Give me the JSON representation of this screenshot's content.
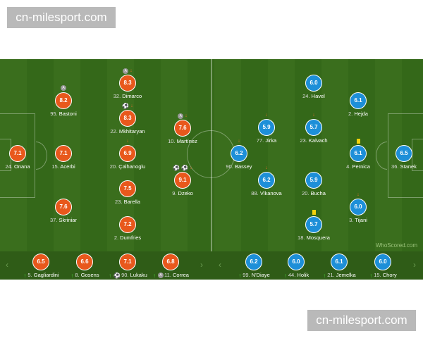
{
  "watermark": "cn-milesport.com",
  "brand": "WhoScored.com",
  "colors": {
    "home": "#e8581c",
    "away": "#1d8fd8"
  },
  "home": [
    {
      "num": "24.",
      "name": "Onana",
      "rating": "7.1",
      "events": []
    },
    {
      "num": "95.",
      "name": "Bastoni",
      "rating": "8.2",
      "events": [
        "assist"
      ]
    },
    {
      "num": "15.",
      "name": "Acerbi",
      "rating": "7.1",
      "events": []
    },
    {
      "num": "37.",
      "name": "Skriniar",
      "rating": "7.6",
      "events": []
    },
    {
      "num": "32.",
      "name": "Dimarco",
      "rating": "8.3",
      "events": [
        "assist",
        "sub-off"
      ]
    },
    {
      "num": "22.",
      "name": "Mkhitaryan",
      "rating": "8.3",
      "events": [
        "goal",
        "sub-off"
      ]
    },
    {
      "num": "20.",
      "name": "Çalhanoglu",
      "rating": "6.9",
      "events": [
        "sub-off"
      ]
    },
    {
      "num": "23.",
      "name": "Barella",
      "rating": "7.5",
      "events": []
    },
    {
      "num": "2.",
      "name": "Dumfries",
      "rating": "7.2",
      "events": []
    },
    {
      "num": "10.",
      "name": "Martínez",
      "rating": "7.6",
      "events": [
        "assist",
        "sub-off"
      ]
    },
    {
      "num": "9.",
      "name": "Dzeko",
      "rating": "9.1",
      "events": [
        "goal",
        "goal",
        "sub-off"
      ]
    }
  ],
  "away": [
    {
      "num": "24.",
      "name": "Havel",
      "rating": "6.0",
      "events": []
    },
    {
      "num": "2.",
      "name": "Hejda",
      "rating": "6.1",
      "events": []
    },
    {
      "num": "77.",
      "name": "Jirka",
      "rating": "5.9",
      "events": [
        "sub-off"
      ]
    },
    {
      "num": "23.",
      "name": "Kalvach",
      "rating": "5.7",
      "events": [
        "sub-off"
      ]
    },
    {
      "num": "90.",
      "name": "Bassey",
      "rating": "6.2",
      "events": [
        "sub-off"
      ]
    },
    {
      "num": "4.",
      "name": "Pernica",
      "rating": "6.1",
      "events": [
        "yellow-card"
      ]
    },
    {
      "num": "36.",
      "name": "Stanek",
      "rating": "6.5",
      "events": []
    },
    {
      "num": "88.",
      "name": "Vlkanova",
      "rating": "6.2",
      "events": [
        "sub-off"
      ]
    },
    {
      "num": "20.",
      "name": "Bucha",
      "rating": "5.9",
      "events": []
    },
    {
      "num": "3.",
      "name": "Tijani",
      "rating": "6.0",
      "events": [
        "sub-off"
      ]
    },
    {
      "num": "18.",
      "name": "Mosquera",
      "rating": "5.7",
      "events": [
        "yellow-card"
      ]
    }
  ],
  "home_subs": [
    {
      "num": "5.",
      "name": "Gagliardini",
      "rating": "6.5",
      "events": [
        "sub-on"
      ]
    },
    {
      "num": "8.",
      "name": "Gosens",
      "rating": "6.6",
      "events": [
        "sub-on"
      ]
    },
    {
      "num": "90.",
      "name": "Lukaku",
      "rating": "7.1",
      "events": [
        "sub-on",
        "goal"
      ]
    },
    {
      "num": "11.",
      "name": "Correa",
      "rating": "6.8",
      "events": [
        "sub-on",
        "assist"
      ]
    }
  ],
  "away_subs": [
    {
      "num": "99.",
      "name": "N'Diaye",
      "rating": "6.2",
      "events": [
        "sub-on"
      ]
    },
    {
      "num": "44.",
      "name": "Holik",
      "rating": "6.0",
      "events": [
        "sub-on"
      ]
    },
    {
      "num": "21.",
      "name": "Jemelka",
      "rating": "6.1",
      "events": [
        "sub-on"
      ]
    },
    {
      "num": "15.",
      "name": "Chory",
      "rating": "6.0",
      "events": [
        "sub-on"
      ]
    }
  ]
}
